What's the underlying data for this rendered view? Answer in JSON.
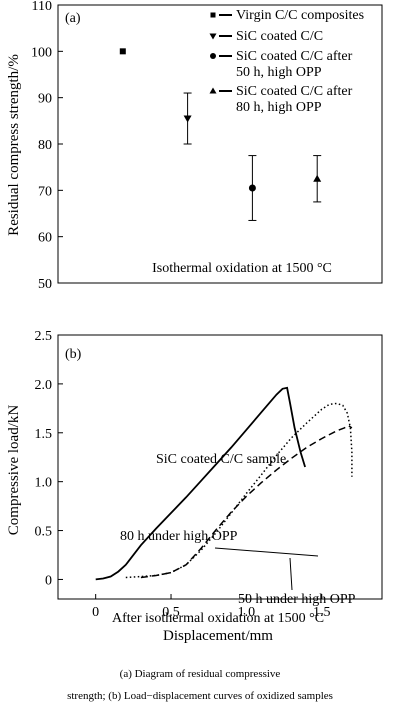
{
  "chart_data": [
    {
      "type": "scatter",
      "panel_label": "(a)",
      "ylabel": "Residual compress strength/%",
      "ylim": [
        50,
        110
      ],
      "yticks": [
        50,
        60,
        70,
        80,
        90,
        100,
        110
      ],
      "xlim": [
        0,
        5
      ],
      "annotation": "Isothermal oxidation at 1500 °C",
      "legend_position": "top-right",
      "series": [
        {
          "name": "Virgin C/C composites",
          "marker": "square",
          "x": 1,
          "y": 100,
          "err_low": null,
          "err_high": null
        },
        {
          "name": "SiC coated C/C",
          "marker": "triangle-down",
          "x": 2,
          "y": 85.5,
          "err_low": 80,
          "err_high": 91
        },
        {
          "name": "SiC coated C/C after 50 h, high OPP",
          "marker": "circle",
          "x": 3,
          "y": 70.5,
          "err_low": 63.5,
          "err_high": 77.5
        },
        {
          "name": "SiC coated C/C after 80 h, high OPP",
          "marker": "triangle-up",
          "x": 4,
          "y": 72.5,
          "err_low": 67.5,
          "err_high": 77.5
        }
      ]
    },
    {
      "type": "line",
      "panel_label": "(b)",
      "xlabel": "Displacement/mm",
      "ylabel": "Compressive load/kN",
      "xlim": [
        -0.25,
        1.9
      ],
      "ylim": [
        -0.2,
        2.5
      ],
      "xticks": [
        0,
        0.5,
        1.0,
        1.5
      ],
      "yticks": [
        0,
        0.5,
        1.0,
        1.5,
        2.0,
        2.5
      ],
      "xtick_labels": [
        "0",
        "0.5",
        "1.0",
        "1.5"
      ],
      "ytick_labels": [
        "0",
        "0.5",
        "1.0",
        "1.5",
        "2.0",
        "2.5"
      ],
      "annotation": "After isothermal oxidation at 1500 °C",
      "series": [
        {
          "name": "SiC coated C/C sample",
          "style": "solid",
          "x": [
            0,
            0.05,
            0.1,
            0.15,
            0.2,
            0.3,
            0.4,
            0.5,
            0.6,
            0.7,
            0.8,
            0.9,
            1.0,
            1.1,
            1.2,
            1.24,
            1.27,
            1.29,
            1.32,
            1.36,
            1.39
          ],
          "y": [
            0,
            0.01,
            0.03,
            0.08,
            0.15,
            0.35,
            0.52,
            0.68,
            0.84,
            1.01,
            1.18,
            1.35,
            1.53,
            1.71,
            1.89,
            1.95,
            1.96,
            1.8,
            1.55,
            1.3,
            1.15
          ]
        },
        {
          "name": "80 h under high OPP",
          "style": "dotted",
          "x": [
            0.2,
            0.3,
            0.4,
            0.5,
            0.6,
            0.7,
            0.8,
            0.9,
            1.0,
            1.1,
            1.2,
            1.3,
            1.4,
            1.5,
            1.55,
            1.6,
            1.64,
            1.67,
            1.69,
            1.7,
            1.7
          ],
          "y": [
            0.02,
            0.03,
            0.04,
            0.07,
            0.15,
            0.3,
            0.48,
            0.68,
            0.88,
            1.07,
            1.27,
            1.45,
            1.6,
            1.74,
            1.79,
            1.8,
            1.78,
            1.7,
            1.55,
            1.3,
            1.05
          ]
        },
        {
          "name": "50 h under high OPP",
          "style": "dashed",
          "x": [
            0.3,
            0.4,
            0.5,
            0.6,
            0.7,
            0.8,
            0.9,
            1.0,
            1.1,
            1.2,
            1.3,
            1.4,
            1.5,
            1.6,
            1.65,
            1.68,
            1.7
          ],
          "y": [
            0.02,
            0.04,
            0.07,
            0.15,
            0.32,
            0.51,
            0.69,
            0.85,
            0.99,
            1.12,
            1.24,
            1.35,
            1.44,
            1.52,
            1.55,
            1.57,
            1.55
          ]
        }
      ]
    }
  ],
  "caption": {
    "line1": "(a) Diagram of residual compressive",
    "line2": "strength; (b) Load−displacement curves of oxidized samples"
  }
}
